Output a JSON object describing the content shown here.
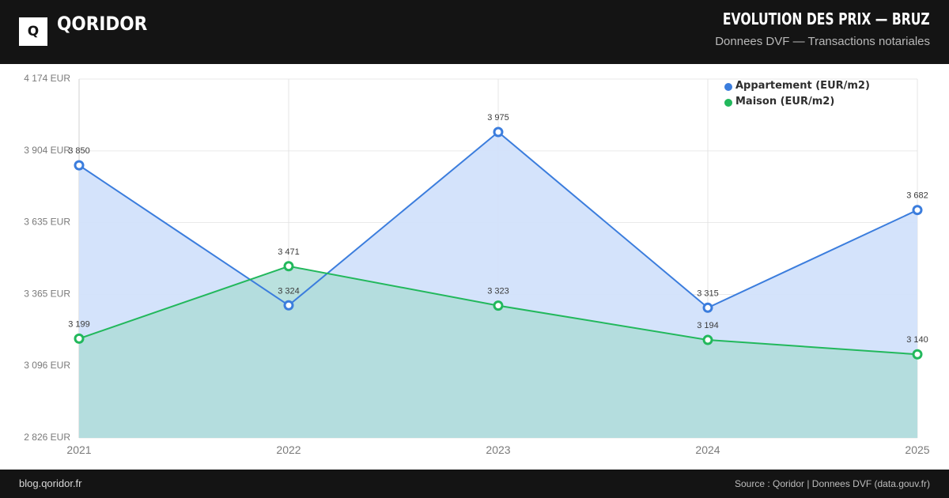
{
  "header": {
    "logo_letter": "Q",
    "brand": "QORIDOR",
    "title": "EVOLUTION DES PRIX — BRUZ",
    "subtitle": "Donnees DVF — Transactions notariales"
  },
  "footer": {
    "left": "blog.qoridor.fr",
    "right": "Source : Qoridor | Donnees DVF (data.gouv.fr)"
  },
  "colors": {
    "appartement": "#3b7ddd",
    "maison": "#22b85c",
    "appartement_fill": "#d2e2fb",
    "maison_fill": "#aedcd8"
  },
  "chart_data": {
    "type": "area",
    "title": "",
    "xlabel": "",
    "ylabel": "",
    "x": [
      "2021",
      "2022",
      "2023",
      "2024",
      "2025"
    ],
    "ylim": [
      2826,
      4174
    ],
    "yticks": [
      2826,
      3096,
      3365,
      3635,
      3904,
      4174
    ],
    "ytick_labels": [
      "2 826 EUR",
      "3 096 EUR",
      "3 365 EUR",
      "3 635 EUR",
      "3 904 EUR",
      "4 174 EUR"
    ],
    "legend_position": "top-right",
    "grid": true,
    "series": [
      {
        "name": "Appartement (EUR/m2)",
        "values": [
          3850,
          3324,
          3975,
          3315,
          3682
        ],
        "labels": [
          "3 850",
          "3 324",
          "3 975",
          "3 315",
          "3 682"
        ]
      },
      {
        "name": "Maison (EUR/m2)",
        "values": [
          3199,
          3471,
          3323,
          3194,
          3140
        ],
        "labels": [
          "3 199",
          "3 471",
          "3 323",
          "3 194",
          "3 140"
        ]
      }
    ]
  }
}
